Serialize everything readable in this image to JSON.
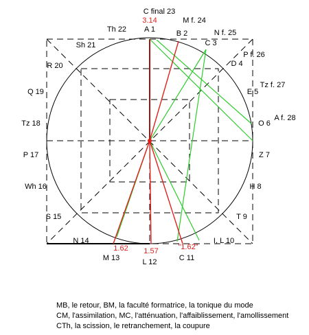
{
  "diagram": {
    "points": [
      "A 1",
      "B 2",
      "C 3",
      "D 4",
      "E 5",
      "O 6",
      "Z 7",
      "H 8",
      "T 9",
      "I, L 10",
      "C 11",
      "L 12",
      "M 13",
      "N 14",
      "S 15",
      "Wh 16",
      "P 17",
      "Tz 18",
      "Q 19",
      "R 20",
      "Sh 21",
      "Th 22",
      "C final 23",
      "M f. 24",
      "N f. 25",
      "P f. 26",
      "Tz f. 27",
      "A f. 28"
    ],
    "ratios": [
      "3.14",
      "1.62",
      "1.57",
      "\"1.62\""
    ]
  },
  "caption": [
    "MB, le retour, BM, la faculté formatrice, la tonique du mode",
    "CM, l'assimilation, MC, l'atténuation, l'affaiblissement, l'amollissement",
    "CTh, la scission, le retranchement, la coupure"
  ]
}
